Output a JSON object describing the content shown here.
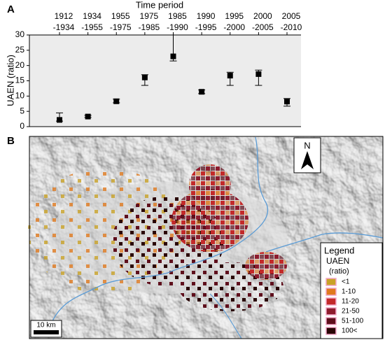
{
  "chart_data": {
    "type": "errorbar",
    "title": "Time period",
    "y_label": "UAEN (ratio)",
    "categories": [
      "1912\n-1934",
      "1934\n-1955",
      "1955\n-1975",
      "1975\n-1985",
      "1985\n-1990",
      "1990\n-1995",
      "1995\n-2000",
      "2000\n-2005",
      "2005\n-2010"
    ],
    "values": [
      2.2,
      3.3,
      8.3,
      16.1,
      23,
      11.4,
      16.7,
      17.2,
      8.2
    ],
    "error_minus": [
      0.4,
      0.3,
      0.5,
      2.6,
      1.5,
      0.6,
      3.2,
      3.7,
      1.5
    ],
    "error_plus": [
      2.3,
      0.4,
      0.7,
      0.9,
      7,
      0.6,
      1.1,
      1.3,
      1.0
    ],
    "color": "#000000",
    "ylim": [
      0,
      30
    ],
    "yticks": [
      0,
      5,
      10,
      15,
      20,
      25,
      30
    ],
    "background": "#ececec"
  },
  "panel_labels": [
    "A",
    "B"
  ],
  "map": {
    "north": "N",
    "scale": "10 km",
    "legend": {
      "title": "Legend",
      "subtitle": "UAEN",
      "unit": "(ratio)",
      "items": [
        {
          "label": "<1",
          "color": "#c9a227"
        },
        {
          "label": "1-10",
          "color": "#e07a1f"
        },
        {
          "label": "11-20",
          "color": "#c22a2a"
        },
        {
          "label": "21-50",
          "color": "#8e1c2e"
        },
        {
          "label": "51-100",
          "color": "#5e0f1c"
        },
        {
          "label": "100<",
          "color": "#2a0606"
        }
      ]
    }
  }
}
